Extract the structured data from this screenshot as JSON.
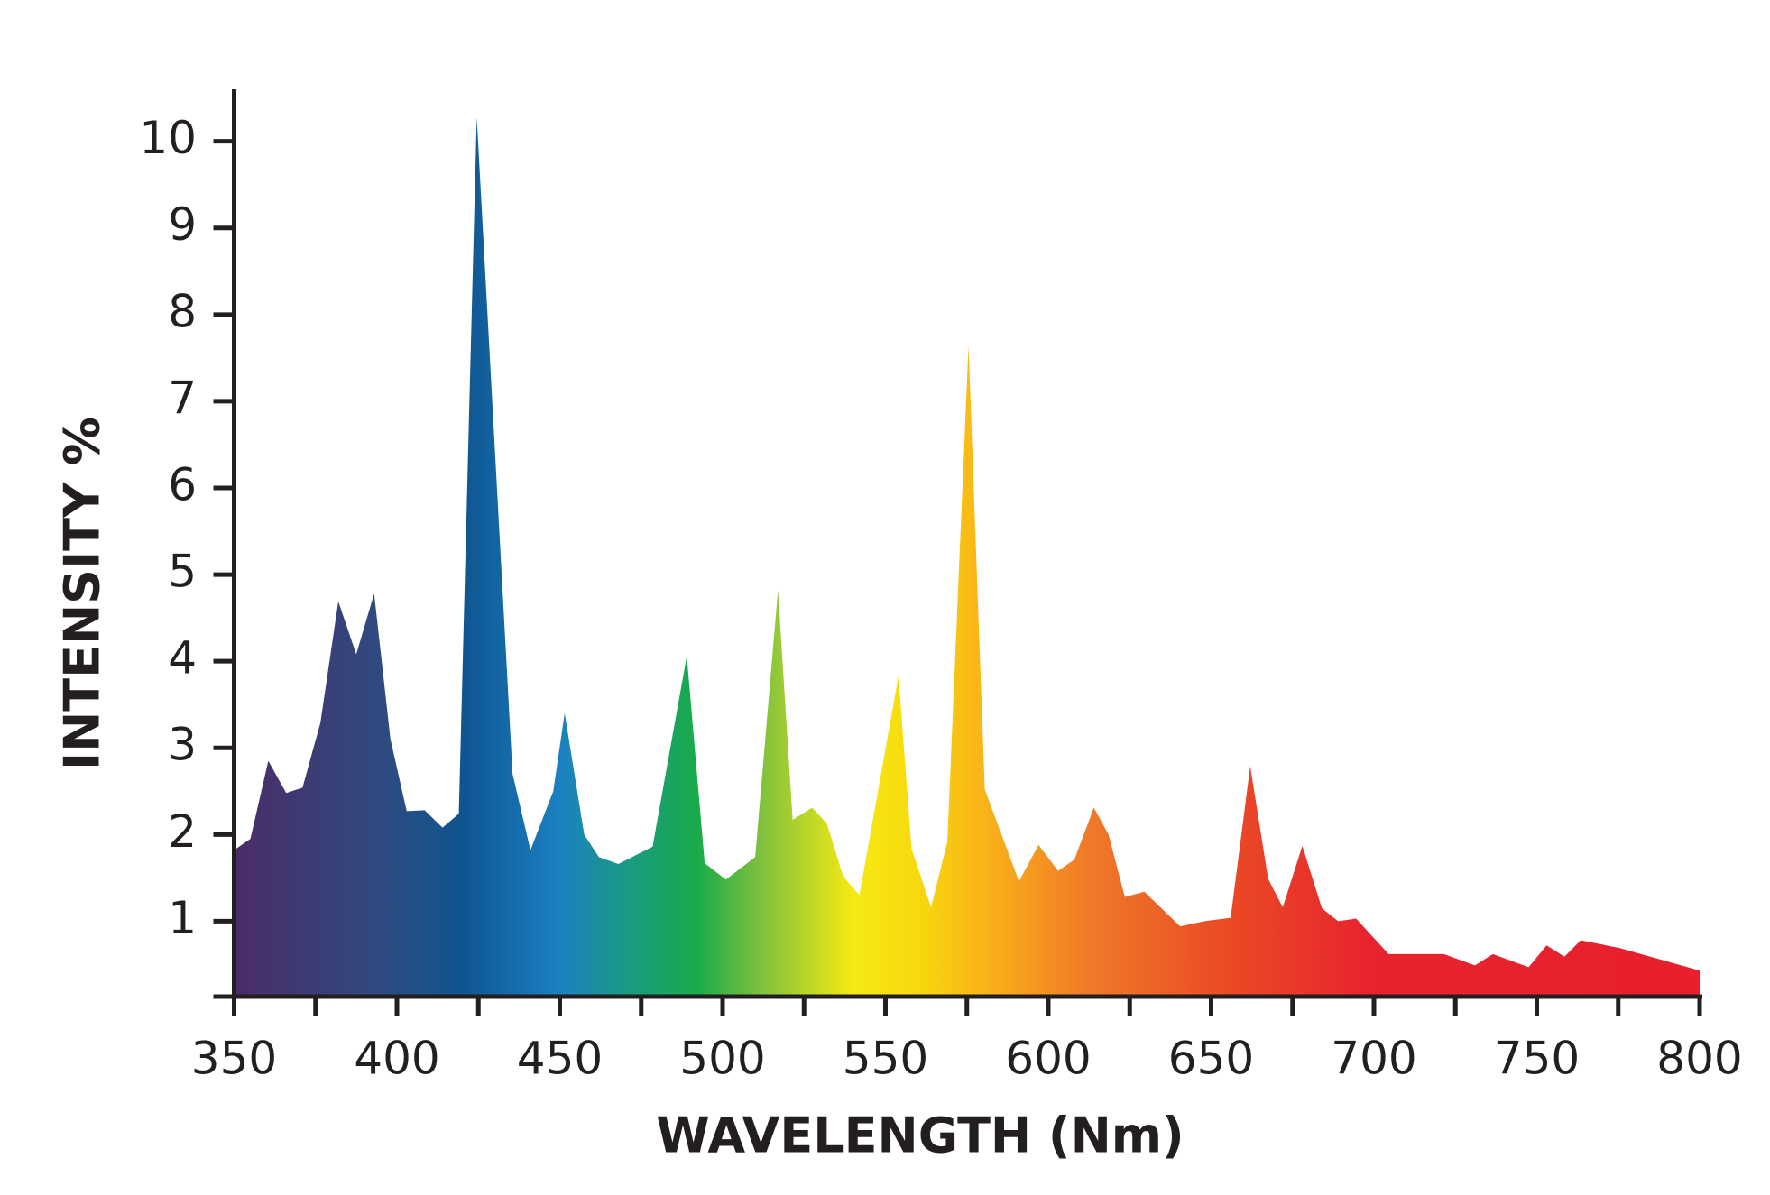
{
  "chart_data": {
    "type": "area",
    "xlabel": "WAVELENGTH (Nm)",
    "ylabel": "INTENSITY %",
    "x": [
      350,
      355,
      360.5,
      366,
      371,
      376.5,
      382,
      387.5,
      393,
      398,
      403,
      408.5,
      414,
      419,
      424.5,
      435.5,
      441,
      448,
      451.5,
      457.5,
      462,
      468,
      478.5,
      489,
      494.5,
      501,
      510,
      517,
      521.5,
      527.5,
      532,
      537,
      542,
      554,
      558,
      564,
      569,
      575.5,
      580.5,
      591,
      597,
      603,
      608,
      614,
      618.5,
      623.5,
      629.5,
      640.5,
      648,
      656,
      662,
      667.5,
      672,
      678,
      684,
      689,
      694.5,
      704.5,
      721.5,
      731,
      736.5,
      747.5,
      753,
      758.5,
      763.5,
      775.5,
      800
    ],
    "values": [
      1.82,
      1.95,
      2.85,
      2.48,
      2.54,
      3.29,
      4.69,
      4.08,
      4.78,
      3.1,
      2.27,
      2.28,
      2.08,
      2.24,
      10.28,
      2.7,
      1.82,
      2.5,
      3.4,
      2.0,
      1.74,
      1.66,
      1.86,
      4.06,
      1.67,
      1.48,
      1.74,
      4.82,
      2.17,
      2.31,
      2.13,
      1.52,
      1.3,
      3.83,
      1.84,
      1.16,
      1.92,
      7.64,
      2.52,
      1.46,
      1.88,
      1.58,
      1.71,
      2.31,
      2.0,
      1.28,
      1.34,
      0.94,
      1.0,
      1.04,
      2.79,
      1.49,
      1.16,
      1.87,
      1.15,
      1.0,
      1.03,
      0.62,
      0.62,
      0.49,
      0.62,
      0.47,
      0.72,
      0.59,
      0.78,
      0.69,
      0.43
    ],
    "color_stops": [
      {
        "x": 350,
        "color": "#4b2c67"
      },
      {
        "x": 395,
        "color": "#2f4a80"
      },
      {
        "x": 420,
        "color": "#0f5590"
      },
      {
        "x": 450,
        "color": "#1b80c2"
      },
      {
        "x": 470,
        "color": "#1a9a84"
      },
      {
        "x": 492,
        "color": "#19aa4a"
      },
      {
        "x": 512,
        "color": "#80c13e"
      },
      {
        "x": 540,
        "color": "#f5ea12"
      },
      {
        "x": 560,
        "color": "#f8d80e"
      },
      {
        "x": 580,
        "color": "#f9b419"
      },
      {
        "x": 612,
        "color": "#f07a28"
      },
      {
        "x": 655,
        "color": "#ea4a25"
      },
      {
        "x": 700,
        "color": "#e8222f"
      },
      {
        "x": 800,
        "color": "#e8202e"
      }
    ],
    "xlim": [
      350,
      800
    ],
    "ylim": [
      0.13,
      10.6
    ],
    "xticks": [
      350,
      400,
      450,
      500,
      550,
      600,
      650,
      700,
      750,
      800
    ],
    "xminorticks": [
      375,
      425,
      475,
      525,
      575,
      625,
      675,
      725,
      775
    ],
    "yticks": [
      1,
      2,
      3,
      4,
      5,
      6,
      7,
      8,
      9,
      10
    ],
    "axis_color": "#231f20"
  }
}
